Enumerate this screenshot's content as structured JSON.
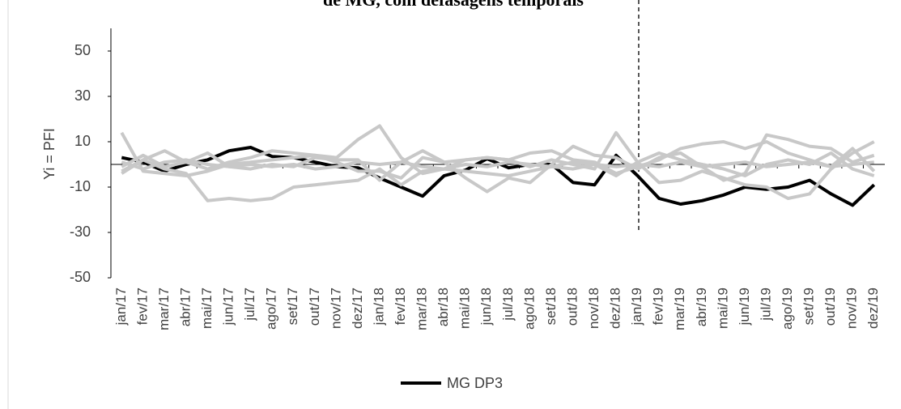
{
  "chart_data": {
    "type": "line",
    "title": "de MG, com defasagens temporais",
    "y_label": "Yi = PFI",
    "categories": [
      "jan/17",
      "fev/17",
      "mar/17",
      "abr/17",
      "mai/17",
      "jun/17",
      "jul/17",
      "ago/17",
      "set/17",
      "out/17",
      "nov/17",
      "dez/17",
      "jan/18",
      "fev/18",
      "mar/18",
      "abr/18",
      "mai/18",
      "jun/18",
      "jul/18",
      "ago/18",
      "set/18",
      "out/18",
      "nov/18",
      "dez/18",
      "jan/19",
      "fev/19",
      "mar/19",
      "abr/19",
      "mai/19",
      "jun/19",
      "jul/19",
      "ago/19",
      "set/19",
      "out/19",
      "nov/19",
      "dez/19"
    ],
    "series": [
      {
        "name": "MG DP3",
        "color": "#000000",
        "values": [
          3,
          1,
          -3,
          0,
          2,
          6,
          7.5,
          3.5,
          3,
          1,
          -1,
          -1.5,
          -6,
          -10,
          -14,
          -5,
          -2.5,
          2.5,
          -1.5,
          0,
          0,
          -8,
          -9,
          4,
          -5,
          -15,
          -17.5,
          -16,
          -13.5,
          -10,
          -11,
          -10,
          -7,
          -13,
          -18,
          -9
        ]
      },
      {
        "color": "#c8c8c8",
        "values": [
          14,
          -3,
          -4,
          -5,
          -3,
          0,
          1,
          2,
          3,
          4,
          3,
          11,
          17,
          3,
          -4,
          -2,
          2,
          3,
          2,
          -1,
          2,
          0,
          -2,
          14,
          1,
          -8,
          -7,
          -3,
          -6,
          -9,
          -10,
          -15,
          -13,
          -2,
          5,
          10
        ]
      },
      {
        "color": "#c8c8c8",
        "values": [
          -3,
          2,
          -2,
          -4,
          -16,
          -15,
          -16,
          -15,
          -10,
          -9,
          -8,
          -7,
          -2,
          -9,
          -3,
          -2,
          -3,
          -4,
          -5,
          -3,
          -1,
          -2,
          0,
          -5,
          1,
          5,
          2,
          0,
          -2,
          -5,
          0,
          2,
          0,
          5,
          -2,
          -5
        ]
      },
      {
        "color": "#c8c8c8",
        "values": [
          -4,
          2,
          6,
          1,
          5,
          -1,
          -2,
          0,
          -1,
          3,
          2,
          2,
          -7,
          1,
          6,
          1,
          2,
          3,
          2,
          5,
          6,
          2,
          1,
          -4,
          -1,
          2,
          7,
          9,
          10,
          7,
          10,
          5,
          2,
          -1,
          7,
          -3
        ]
      },
      {
        "color": "#c8c8c8",
        "values": [
          -1,
          4,
          -1,
          1,
          -2,
          1,
          3,
          6,
          5,
          4,
          1,
          -3,
          -3,
          -6,
          3,
          1,
          -6,
          -12,
          -6,
          -8,
          0,
          8,
          4,
          3,
          -2,
          3,
          5,
          -1,
          -7,
          -4,
          13,
          11,
          8,
          7,
          1,
          4
        ]
      },
      {
        "color": "#c8c8c8",
        "values": [
          1,
          -2,
          1,
          2,
          0,
          -1,
          0,
          -1,
          0,
          -2,
          -1,
          1,
          0,
          1,
          -1,
          -2,
          0,
          -1,
          1,
          0,
          -1,
          1,
          0,
          -1,
          0,
          -1,
          1,
          -1,
          0,
          1,
          -1,
          0,
          1,
          -1,
          0,
          1
        ]
      }
    ],
    "ylim": [
      -50,
      60
    ],
    "yticks": [
      -50,
      -30,
      -10,
      10,
      30,
      50
    ],
    "grid": false
  }
}
